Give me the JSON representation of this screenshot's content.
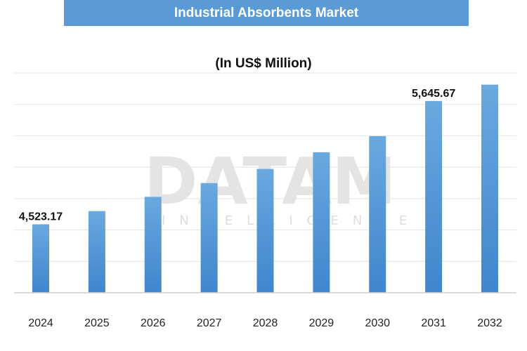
{
  "chart_data": {
    "type": "bar",
    "title": "Industrial Absorbents Market",
    "subtitle": "(In US$ Million)",
    "categories": [
      "2024",
      "2025",
      "2026",
      "2027",
      "2028",
      "2029",
      "2030",
      "2031",
      "2032"
    ],
    "values": [
      4523.17,
      4643,
      4773,
      4898,
      5027,
      5179,
      5325,
      5645.67,
      5794
    ],
    "data_labels": [
      "4,523.17",
      "",
      "",
      "",
      "",
      "",
      "",
      "5,645.67",
      ""
    ],
    "ylim": [
      3900,
      5900
    ],
    "grid": true,
    "legend": false,
    "bar_color": "#5b9bd5"
  },
  "watermark": {
    "main": "DATAM",
    "sub": "INTELLIGENCE"
  }
}
